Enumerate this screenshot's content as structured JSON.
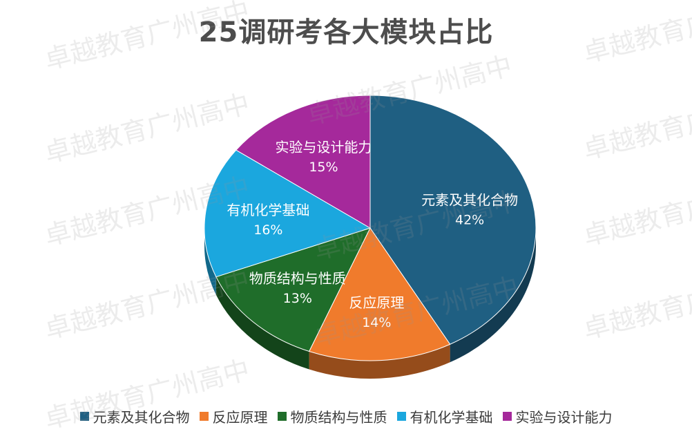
{
  "chart_data": {
    "type": "pie",
    "title": "25调研考各大模块占比",
    "categories": [
      "元素及其化合物",
      "反应原理",
      "物质结构与性质",
      "有机化学基础",
      "实验与设计能力"
    ],
    "values": [
      42,
      14,
      13,
      16,
      15
    ],
    "value_labels": [
      "42%",
      "14%",
      "13%",
      "16%",
      "15%"
    ],
    "colors": [
      "#1f5f82",
      "#f07b2c",
      "#1f6d2a",
      "#1ba7de",
      "#a5299b"
    ],
    "legend_position": "bottom",
    "style": "3d"
  },
  "watermark": "卓越教育广州高中"
}
